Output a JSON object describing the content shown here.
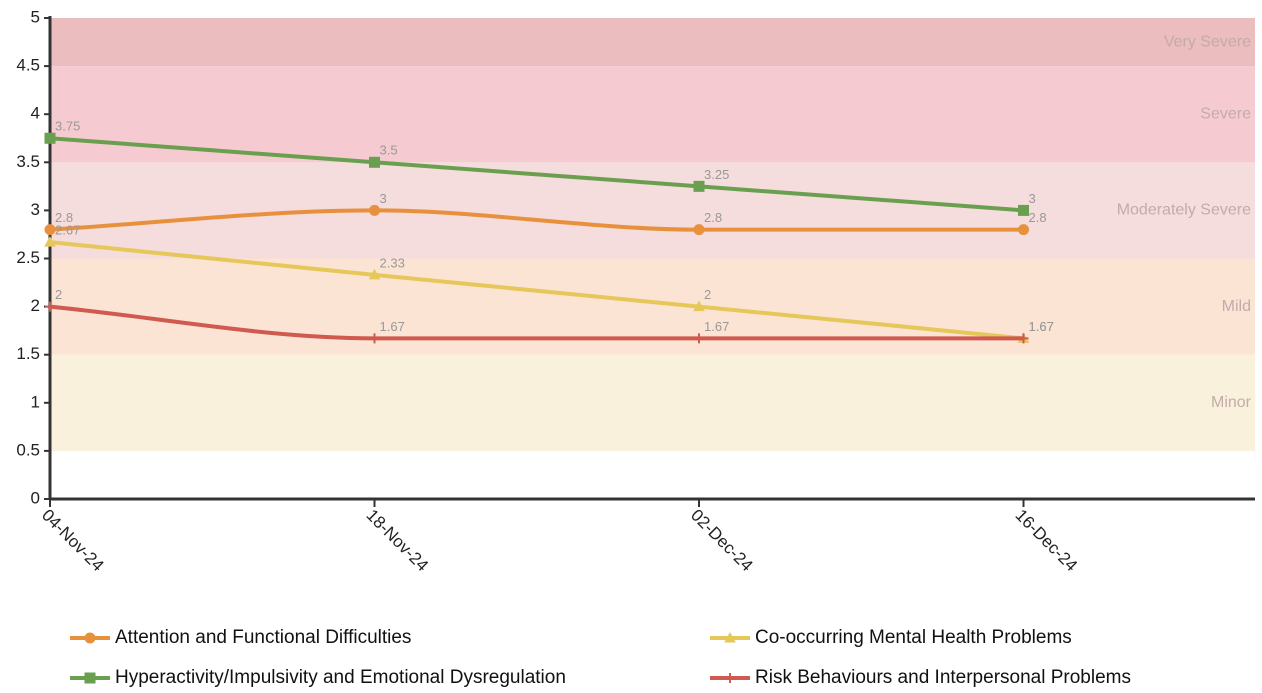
{
  "chart_data": {
    "type": "line",
    "categories": [
      "04-Nov-24",
      "18-Nov-24",
      "02-Dec-24",
      "16-Dec-24"
    ],
    "series": [
      {
        "name": "Attention and Functional Difficulties",
        "color": "#e8913d",
        "marker": "circle",
        "values": [
          2.8,
          3,
          2.8,
          2.8
        ]
      },
      {
        "name": "Co-occurring Mental Health Problems",
        "color": "#e6c75a",
        "marker": "triangle",
        "values": [
          2.67,
          2.33,
          2,
          1.67
        ]
      },
      {
        "name": "Hyperactivity/Impulsivity and Emotional Dysregulation",
        "color": "#6a9f50",
        "marker": "square",
        "values": [
          3.75,
          3.5,
          3.25,
          3
        ]
      },
      {
        "name": "Risk Behaviours and Interpersonal Problems",
        "color": "#d05a4f",
        "marker": "plus",
        "values": [
          2,
          1.67,
          1.67,
          1.67
        ]
      }
    ],
    "bands": [
      {
        "label": "Minor",
        "from": 0.5,
        "to": 1.5,
        "color": "#faf1dc"
      },
      {
        "label": "Mild",
        "from": 1.5,
        "to": 2.5,
        "color": "#fbe4d3"
      },
      {
        "label": "Moderately Severe",
        "from": 2.5,
        "to": 3.5,
        "color": "#f5dcdd"
      },
      {
        "label": "Severe",
        "from": 3.5,
        "to": 4.5,
        "color": "#f5cbd1"
      },
      {
        "label": "Very Severe",
        "from": 4.5,
        "to": 5,
        "color": "#ecbdbe"
      }
    ],
    "ylim": [
      0,
      5
    ],
    "yticks": [
      0,
      0.5,
      1,
      1.5,
      2,
      2.5,
      3,
      3.5,
      4,
      4.5,
      5
    ],
    "grid": false
  }
}
